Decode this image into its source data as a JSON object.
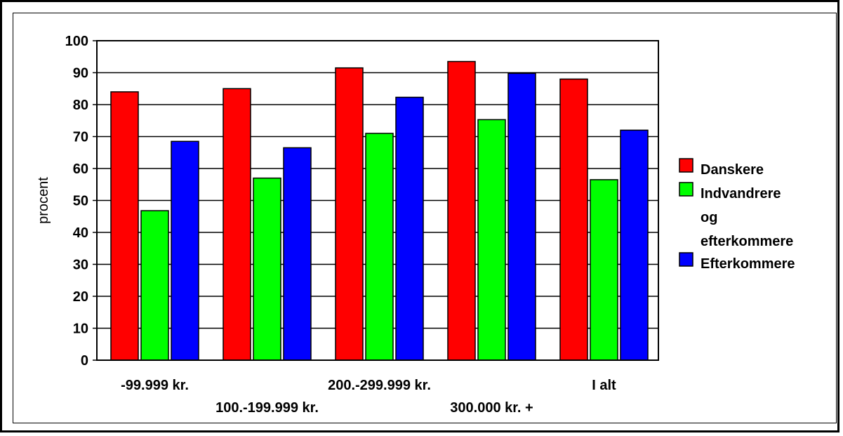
{
  "chart_data": {
    "type": "bar",
    "ylabel": "procent",
    "ylim": [
      0,
      100
    ],
    "yticks": [
      0,
      10,
      20,
      30,
      40,
      50,
      60,
      70,
      80,
      90,
      100
    ],
    "grid": true,
    "legend_position": "right",
    "categories": [
      "-99.999 kr.",
      "100.-199.999 kr.",
      "200.-299.999 kr.",
      "300.000 kr. +",
      "I alt"
    ],
    "series": [
      {
        "name": "Danskere",
        "color": "#ff0000",
        "values": [
          84,
          85,
          91.5,
          93.5,
          88
        ]
      },
      {
        "name": "Indvandrere og efterkommere",
        "legend_lines": [
          "Indvandrere",
          "og",
          "efterkommere"
        ],
        "color": "#00ff00",
        "values": [
          46.8,
          57,
          71,
          75.3,
          56.5
        ]
      },
      {
        "name": "Efterkommere",
        "color": "#0000ff",
        "values": [
          68.5,
          66.5,
          82.3,
          89.8,
          72
        ]
      }
    ]
  }
}
